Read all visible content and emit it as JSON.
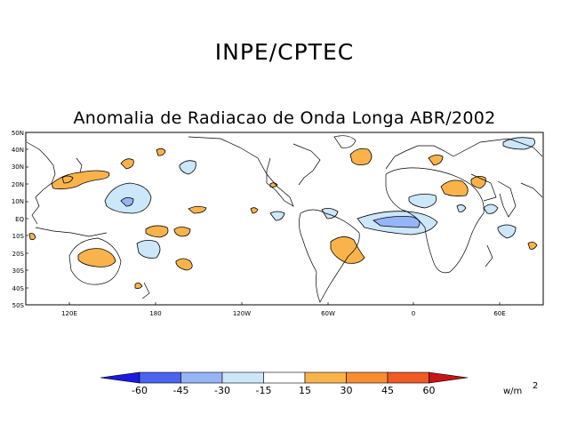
{
  "header": {
    "org": "INPE/CPTEC"
  },
  "map": {
    "title": "Anomalia de Radiacao de Onda Longa ABR/2002",
    "lat_labels": [
      "50N",
      "40N",
      "30N",
      "20N",
      "10N",
      "EQ",
      "10S",
      "20S",
      "30S",
      "40S",
      "50S"
    ],
    "lon_labels": [
      "120E",
      "180",
      "120W",
      "60W",
      "0",
      "60E"
    ]
  },
  "colorbar": {
    "ticks": [
      "-60",
      "-45",
      "-30",
      "-15",
      "15",
      "30",
      "45",
      "60"
    ],
    "unit": "w/m",
    "unit_exp": "2",
    "colors": {
      "lt_m60": "#1a1ae0",
      "m60_m45": "#4a64f0",
      "m45_m30": "#96b4f8",
      "m30_m15": "#cce6fa",
      "m15_15": "#ffffff",
      "p15_30": "#fab34a",
      "p30_45": "#fa8c32",
      "p45_60": "#f05a23",
      "gt_60": "#c81414"
    }
  }
}
